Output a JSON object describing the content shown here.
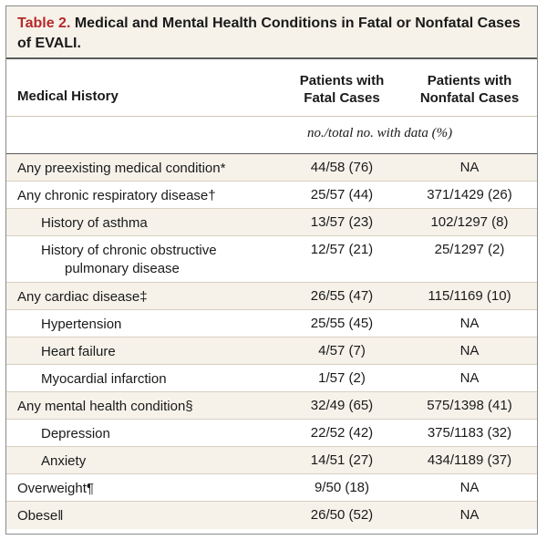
{
  "title": {
    "label": "Table 2.",
    "text": "Medical and Mental Health Conditions in Fatal or Nonfatal Cases of EVALI."
  },
  "columns": {
    "history": "Medical History",
    "fatal_line1": "Patients with",
    "fatal_line2": "Fatal Cases",
    "nonfatal_line1": "Patients with",
    "nonfatal_line2": "Nonfatal Cases"
  },
  "unit_note": "no./total no. with data (%)",
  "rows": [
    {
      "name": "Any preexisting medical condition*",
      "fatal": "44/58 (76)",
      "nonfatal": "NA"
    },
    {
      "name": "Any chronic respiratory disease†",
      "fatal": "25/57 (44)",
      "nonfatal": "371/1429 (26)"
    },
    {
      "name": "History of asthma",
      "fatal": "13/57 (23)",
      "nonfatal": "102/1297 (8)"
    },
    {
      "name": "History of chronic obstructive",
      "name2": "pulmonary disease",
      "fatal": "12/57 (21)",
      "nonfatal": "25/1297 (2)"
    },
    {
      "name": "Any cardiac disease‡",
      "fatal": "26/55 (47)",
      "nonfatal": "115/1169 (10)"
    },
    {
      "name": "Hypertension",
      "fatal": "25/55 (45)",
      "nonfatal": "NA"
    },
    {
      "name": "Heart failure",
      "fatal": "4/57 (7)",
      "nonfatal": "NA"
    },
    {
      "name": "Myocardial infarction",
      "fatal": "1/57 (2)",
      "nonfatal": "NA"
    },
    {
      "name": "Any mental health condition§",
      "fatal": "32/49 (65)",
      "nonfatal": "575/1398 (41)"
    },
    {
      "name": "Depression",
      "fatal": "22/52 (42)",
      "nonfatal": "375/1183 (32)"
    },
    {
      "name": "Anxiety",
      "fatal": "14/51 (27)",
      "nonfatal": "434/1189 (37)"
    },
    {
      "name": "Overweight¶",
      "fatal": "9/50 (18)",
      "nonfatal": "NA"
    },
    {
      "name": "Obese‖",
      "fatal": "26/50 (52)",
      "nonfatal": "NA"
    }
  ]
}
